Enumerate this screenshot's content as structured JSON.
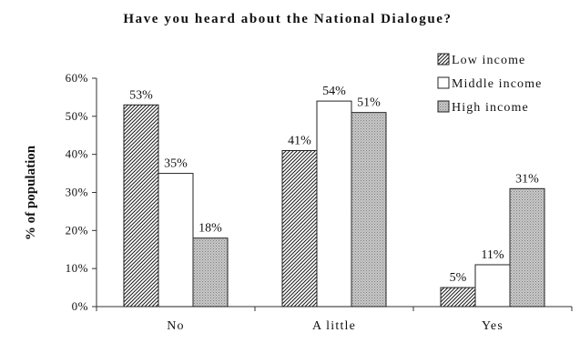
{
  "chart_data": {
    "type": "bar",
    "title": "Have you heard about the National Dialogue?",
    "ylabel": "% of population",
    "xlabel": "",
    "categories": [
      "No",
      "A little",
      "Yes"
    ],
    "ylim": [
      0,
      60
    ],
    "yticks": [
      "0%",
      "10%",
      "20%",
      "30%",
      "40%",
      "50%",
      "60%"
    ],
    "grid": false,
    "legend_position": "top-right",
    "series": [
      {
        "name": "Low income",
        "values": [
          53,
          41,
          5
        ],
        "labels": [
          "53%",
          "41%",
          "5%"
        ],
        "fill": "diagonal-hatch"
      },
      {
        "name": "Middle income",
        "values": [
          35,
          54,
          11
        ],
        "labels": [
          "35%",
          "54%",
          "11%"
        ],
        "fill": "white"
      },
      {
        "name": "High income",
        "values": [
          18,
          51,
          31
        ],
        "labels": [
          "18%",
          "51%",
          "31%"
        ],
        "fill": "dotted-gray"
      }
    ]
  }
}
